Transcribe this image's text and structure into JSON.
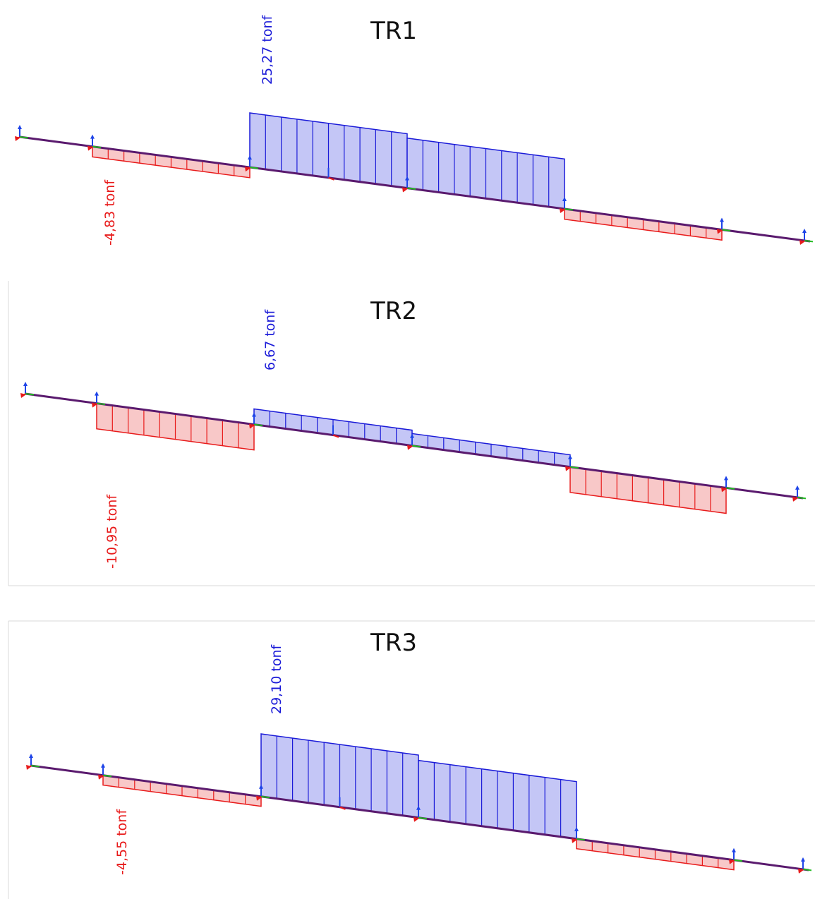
{
  "diagrams": [
    {
      "title": "TR1",
      "max_label": "25,27 tonf",
      "min_label": "-4,83 tonf",
      "segments": [
        {
          "kind": "neg",
          "value": -4.83
        },
        {
          "kind": "pos",
          "value": 25.27
        },
        {
          "kind": "pos",
          "value": 23.2
        },
        {
          "kind": "neg",
          "value": -4.83
        }
      ]
    },
    {
      "title": "TR2",
      "max_label": "6,67 tonf",
      "min_label": "-10,95 tonf",
      "segments": [
        {
          "kind": "neg",
          "value": -10.95
        },
        {
          "kind": "pos",
          "value": 6.67
        },
        {
          "kind": "pos",
          "value": 5.2
        },
        {
          "kind": "neg",
          "value": -10.95
        }
      ]
    },
    {
      "title": "TR3",
      "max_label": "29,10 tonf",
      "min_label": "-4,55 tonf",
      "segments": [
        {
          "kind": "neg",
          "value": -4.55
        },
        {
          "kind": "pos",
          "value": 29.1
        },
        {
          "kind": "pos",
          "value": 26.6
        },
        {
          "kind": "neg",
          "value": -4.55
        }
      ]
    }
  ],
  "colors": {
    "beam": "#5a1a6e",
    "positive_stroke": "#1b1bd8",
    "positive_fill": "#c4c6f6",
    "negative_stroke": "#e81b1b",
    "negative_fill": "#f8c8c8",
    "frame": "#d8d8d8",
    "arrow_blue": "#1e44e8",
    "arrow_red": "#e81b1b",
    "arrow_green": "#22bb22"
  }
}
